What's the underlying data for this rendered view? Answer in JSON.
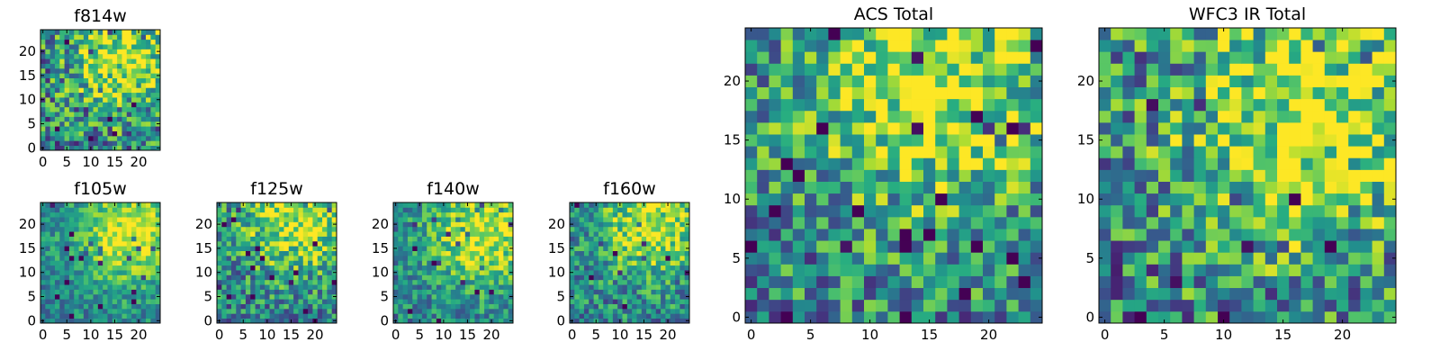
{
  "chart_data": [
    {
      "type": "heatmap",
      "title": "f814w",
      "grid_size": 25,
      "xticks": [
        "0",
        "5",
        "10",
        "15",
        "20"
      ],
      "yticks": [
        "0",
        "5",
        "10",
        "15",
        "20"
      ],
      "colormap": "viridis",
      "hotspot": [
        17,
        19
      ],
      "noise": 0.55,
      "seed": 11
    },
    {
      "type": "heatmap",
      "title": "f105w",
      "grid_size": 25,
      "xticks": [
        "0",
        "5",
        "10",
        "15",
        "20"
      ],
      "yticks": [
        "0",
        "5",
        "10",
        "15",
        "20"
      ],
      "colormap": "viridis",
      "hotspot": [
        18,
        18
      ],
      "noise": 0.3,
      "seed": 23
    },
    {
      "type": "heatmap",
      "title": "f125w",
      "grid_size": 25,
      "xticks": [
        "0",
        "5",
        "10",
        "15",
        "20"
      ],
      "yticks": [
        "0",
        "5",
        "10",
        "15",
        "20"
      ],
      "colormap": "viridis",
      "hotspot": [
        16,
        21
      ],
      "noise": 0.45,
      "seed": 37
    },
    {
      "type": "heatmap",
      "title": "f140w",
      "grid_size": 25,
      "xticks": [
        "0",
        "5",
        "10",
        "15",
        "20"
      ],
      "yticks": [
        "0",
        "5",
        "10",
        "15",
        "20"
      ],
      "colormap": "viridis",
      "hotspot": [
        18,
        18
      ],
      "noise": 0.35,
      "seed": 41
    },
    {
      "type": "heatmap",
      "title": "f160w",
      "grid_size": 25,
      "xticks": [
        "0",
        "5",
        "10",
        "15",
        "20"
      ],
      "yticks": [
        "0",
        "5",
        "10",
        "15",
        "20"
      ],
      "colormap": "viridis",
      "hotspot": [
        17,
        20
      ],
      "noise": 0.4,
      "seed": 53
    },
    {
      "type": "heatmap",
      "title": "ACS Total",
      "grid_size": 25,
      "xticks": [
        "0",
        "5",
        "10",
        "15",
        "20"
      ],
      "yticks": [
        "0",
        "5",
        "10",
        "15",
        "20"
      ],
      "colormap": "viridis",
      "hotspot": [
        15,
        20
      ],
      "noise": 0.5,
      "seed": 67
    },
    {
      "type": "heatmap",
      "title": "WFC3 IR Total",
      "grid_size": 25,
      "xticks": [
        "0",
        "5",
        "10",
        "15",
        "20"
      ],
      "yticks": [
        "0",
        "5",
        "10",
        "15",
        "20"
      ],
      "colormap": "viridis",
      "hotspot": [
        17,
        17
      ],
      "noise": 0.55,
      "seed": 79
    }
  ]
}
